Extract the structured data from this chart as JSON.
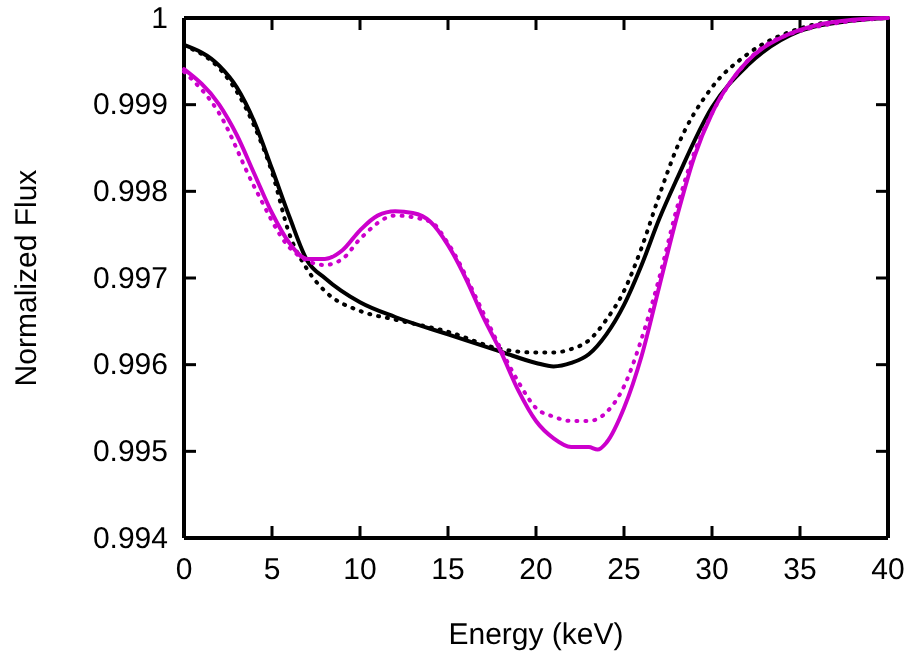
{
  "chart_data": {
    "type": "line",
    "xlabel": "Energy (keV)",
    "ylabel": "Normalized Flux",
    "xlim": [
      0,
      40
    ],
    "ylim": [
      0.994,
      1
    ],
    "xticks": [
      0,
      5,
      10,
      15,
      20,
      25,
      30,
      35,
      40
    ],
    "yticks": [
      0.994,
      0.995,
      0.996,
      0.997,
      0.998,
      0.999,
      1
    ],
    "grid": false,
    "marker": "none",
    "series": [
      {
        "color": "#000000",
        "line_style": "solid",
        "x": [
          0,
          2,
          3,
          4,
          5,
          6,
          7,
          8,
          10,
          12,
          15,
          18,
          20,
          21,
          22,
          23,
          24,
          25,
          26,
          27,
          28,
          30,
          32,
          35,
          38,
          40
        ],
        "values": [
          0.99969,
          0.99945,
          0.9992,
          0.9988,
          0.99826,
          0.9977,
          0.9972,
          0.997,
          0.99672,
          0.99655,
          0.99635,
          0.99615,
          0.99602,
          0.99598,
          0.99602,
          0.99612,
          0.99635,
          0.99669,
          0.99715,
          0.99768,
          0.99814,
          0.99897,
          0.99945,
          0.99985,
          0.99997,
          1
        ]
      },
      {
        "color": "#000000",
        "line_style": "dotted",
        "x": [
          0,
          2,
          3,
          4,
          5,
          6,
          7,
          8,
          10,
          12,
          15,
          18,
          20,
          21,
          22,
          23,
          24,
          25,
          26,
          27,
          28,
          30,
          32,
          35,
          38,
          40
        ],
        "values": [
          0.99968,
          0.99942,
          0.99915,
          0.99875,
          0.99822,
          0.9975,
          0.9971,
          0.99685,
          0.99662,
          0.99652,
          0.99638,
          0.99618,
          0.99614,
          0.99614,
          0.99618,
          0.99628,
          0.99652,
          0.99685,
          0.99735,
          0.99795,
          0.9985,
          0.9992,
          0.99958,
          0.99988,
          0.99998,
          1
        ]
      },
      {
        "color": "#cc00cc",
        "line_style": "solid",
        "x": [
          0,
          2,
          3,
          4,
          5,
          6,
          7,
          8,
          9,
          10,
          11,
          12,
          13,
          14,
          15,
          16,
          17,
          18,
          19,
          20,
          21,
          22,
          23,
          23.5,
          24,
          25,
          26,
          27,
          28,
          29,
          30,
          31,
          32,
          34,
          36,
          38,
          40
        ],
        "values": [
          0.99941,
          0.999,
          0.99865,
          0.9982,
          0.99775,
          0.9974,
          0.99722,
          0.99722,
          0.99732,
          0.99755,
          0.99772,
          0.99777,
          0.99775,
          0.99765,
          0.99738,
          0.997,
          0.99655,
          0.99615,
          0.9957,
          0.99535,
          0.99515,
          0.99505,
          0.99505,
          0.99502,
          0.9951,
          0.9955,
          0.9961,
          0.9969,
          0.9977,
          0.9984,
          0.9989,
          0.99925,
          0.9995,
          0.99978,
          0.99992,
          0.99998,
          1
        ]
      },
      {
        "color": "#cc00cc",
        "line_style": "dotted",
        "x": [
          0,
          2,
          4,
          6,
          7,
          8,
          9,
          10,
          12,
          14,
          15,
          17,
          18,
          19,
          20,
          21,
          22,
          23,
          24,
          25,
          26,
          27,
          28,
          29,
          30,
          32,
          35,
          40
        ],
        "values": [
          0.99938,
          0.9989,
          0.99805,
          0.99735,
          0.9972,
          0.99715,
          0.99722,
          0.99745,
          0.99772,
          0.99765,
          0.9974,
          0.9966,
          0.99618,
          0.9958,
          0.9955,
          0.9954,
          0.99535,
          0.99535,
          0.99545,
          0.99575,
          0.9963,
          0.997,
          0.9978,
          0.99845,
          0.9989,
          0.9995,
          0.99985,
          1
        ]
      }
    ]
  }
}
